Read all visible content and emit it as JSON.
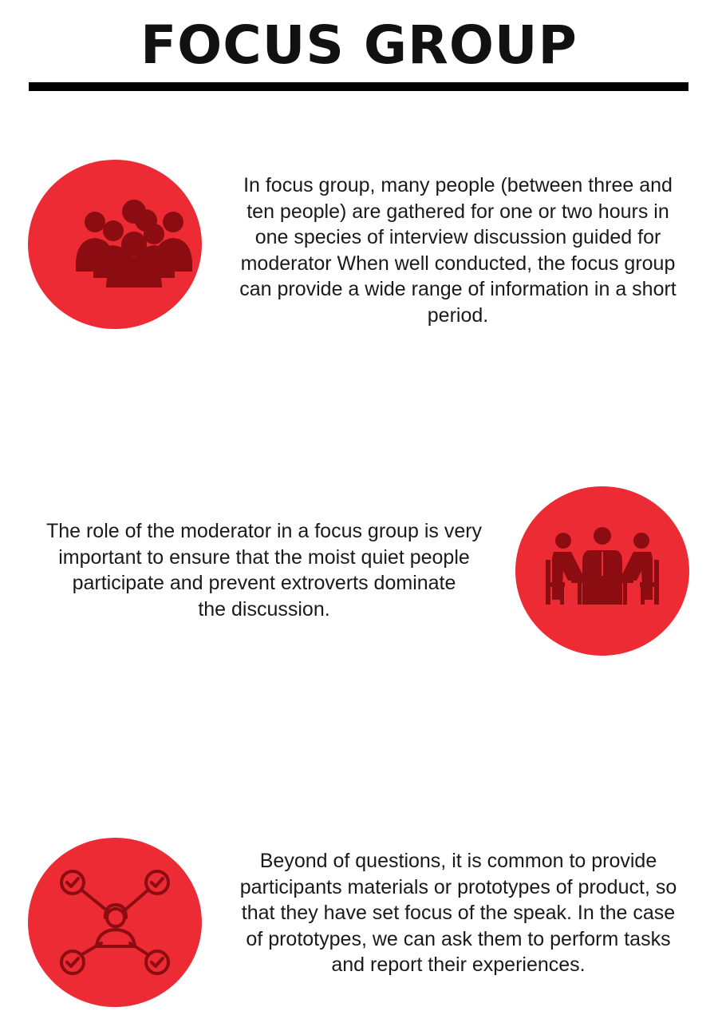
{
  "title": "FOCUS GROUP",
  "colors": {
    "accent": "#ec2b35",
    "icon": "#8b0d12",
    "text": "#1a1a1a"
  },
  "sections": [
    {
      "icon": "group-people-icon",
      "lines": [
        "In focus group, many people (between three and",
        "ten people) are gathered for one or two hours in",
        "one species of interview discussion guided for",
        "moderator When well conducted, the focus group",
        "can provide a wide range of information in a short",
        "period."
      ]
    },
    {
      "icon": "meeting-table-icon",
      "lines": [
        "The role of the moderator in a focus group is very",
        "important to ensure that the moist quiet people",
        "participate and prevent extroverts dominate",
        "the discussion."
      ]
    },
    {
      "icon": "network-checkmarks-icon",
      "lines": [
        "Beyond of questions, it is common to provide",
        "participants materials or prototypes of product, so",
        "that they have set focus of the speak. In the case",
        "of prototypes, we can ask them to perform tasks",
        "and report their experiences."
      ]
    }
  ]
}
